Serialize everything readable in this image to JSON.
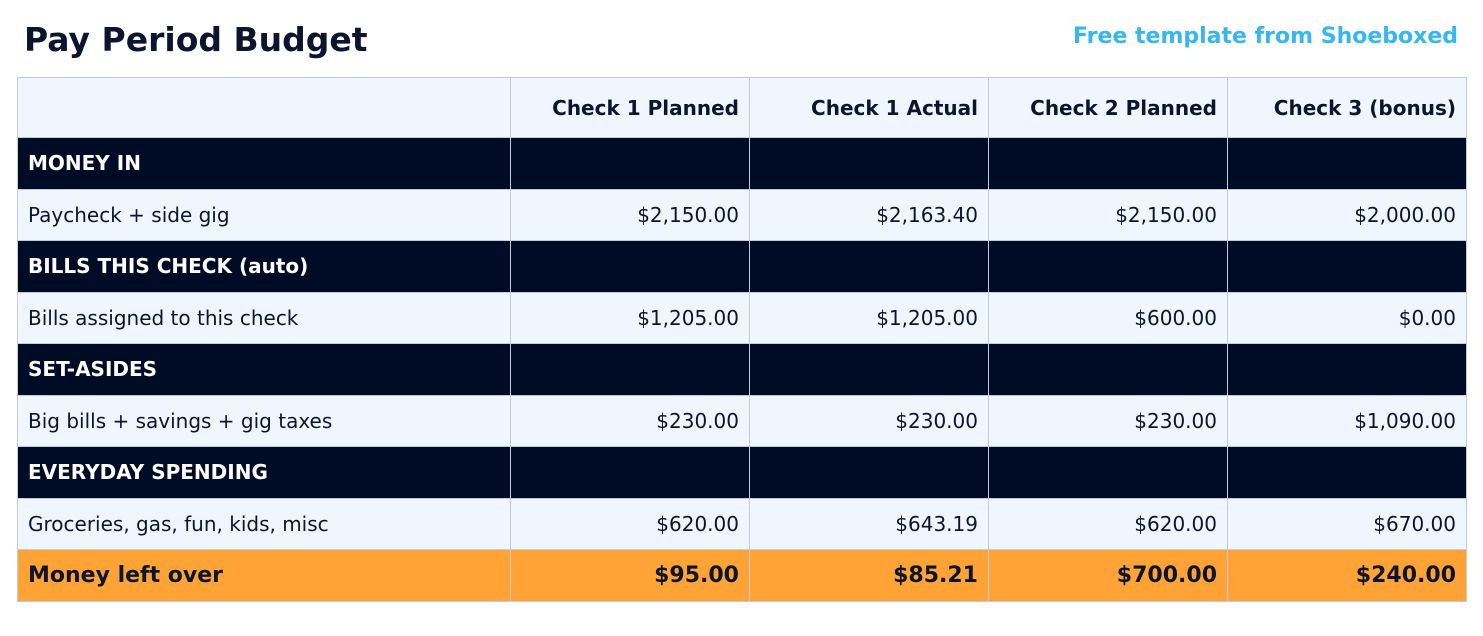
{
  "header": {
    "title": "Pay Period Budget",
    "link": "Free template from Shoeboxed"
  },
  "table": {
    "columns": [
      "Check 1 Planned",
      "Check 1 Actual",
      "Check 2 Planned",
      "Check 3 (bonus)"
    ],
    "sections": [
      {
        "title": "MONEY IN",
        "rows": [
          {
            "label": "Paycheck + side gig",
            "values": [
              "$2,150.00",
              "$2,163.40",
              "$2,150.00",
              "$2,000.00"
            ]
          }
        ]
      },
      {
        "title": "BILLS THIS CHECK (auto)",
        "rows": [
          {
            "label": "Bills assigned to this check",
            "values": [
              "$1,205.00",
              "$1,205.00",
              "$600.00",
              "$0.00"
            ]
          }
        ]
      },
      {
        "title": "SET-ASIDES",
        "rows": [
          {
            "label": "Big bills + savings + gig taxes",
            "values": [
              "$230.00",
              "$230.00",
              "$230.00",
              "$1,090.00"
            ]
          }
        ]
      },
      {
        "title": "EVERYDAY SPENDING",
        "rows": [
          {
            "label": "Groceries, gas, fun, kids, misc",
            "values": [
              "$620.00",
              "$643.19",
              "$620.00",
              "$670.00"
            ]
          }
        ]
      }
    ],
    "total": {
      "label": "Money left over",
      "values": [
        "$95.00",
        "$85.21",
        "$700.00",
        "$240.00"
      ]
    }
  }
}
